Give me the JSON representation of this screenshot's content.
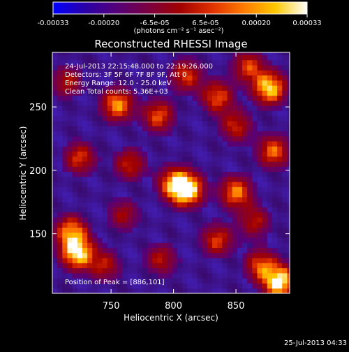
{
  "colorbar": {
    "ticks": [
      "-0.00033",
      "-0.00020",
      "-6.5e-05",
      "6.5e-05",
      "0.00020",
      "0.00033"
    ],
    "unit_label": "(photons cm⁻² s⁻¹ asec⁻²)",
    "stops": [
      "#0000ff",
      "#2a00a8",
      "#55007a",
      "#7a0040",
      "#a00000",
      "#e03000",
      "#ff7a00",
      "#ffc800",
      "#ffffff"
    ]
  },
  "chart_data": {
    "type": "heatmap",
    "title": "Reconstructed RHESSI Image",
    "xlabel": "Heliocentric X (arcsec)",
    "ylabel": "Heliocentric Y (arcsec)",
    "xlim": [
      703,
      893
    ],
    "ylim": [
      103,
      293
    ],
    "xticks": [
      750,
      800,
      850
    ],
    "yticks": [
      150,
      200,
      250
    ],
    "info_lines": [
      "24-Jul-2013 22:15:48.000 to 22:19:26.000",
      "Detectors: 3F 5F 6F 7F 8F 9F, Att 0",
      "Energy Range: 12.0 - 25.0 keV",
      "Clean     Total counts: 5.36E+03"
    ],
    "peak_text": "Position of Peak = [886,101]",
    "peak_position": [
      886,
      101
    ],
    "blobs": [
      {
        "x": 811,
        "y": 185,
        "v": 1.0
      },
      {
        "x": 800,
        "y": 190,
        "v": 0.65
      },
      {
        "x": 755,
        "y": 252,
        "v": 0.75
      },
      {
        "x": 723,
        "y": 135,
        "v": 0.95
      },
      {
        "x": 718,
        "y": 152,
        "v": 0.7
      },
      {
        "x": 877,
        "y": 265,
        "v": 0.9
      },
      {
        "x": 860,
        "y": 282,
        "v": 0.55
      },
      {
        "x": 885,
        "y": 112,
        "v": 1.0
      },
      {
        "x": 870,
        "y": 125,
        "v": 0.6
      },
      {
        "x": 850,
        "y": 183,
        "v": 0.7
      },
      {
        "x": 835,
        "y": 258,
        "v": 0.6
      },
      {
        "x": 880,
        "y": 215,
        "v": 0.65
      },
      {
        "x": 725,
        "y": 210,
        "v": 0.55
      },
      {
        "x": 835,
        "y": 145,
        "v": 0.55
      },
      {
        "x": 765,
        "y": 205,
        "v": 0.5
      },
      {
        "x": 788,
        "y": 243,
        "v": 0.6
      },
      {
        "x": 745,
        "y": 125,
        "v": 0.45
      },
      {
        "x": 850,
        "y": 235,
        "v": 0.5
      },
      {
        "x": 810,
        "y": 275,
        "v": 0.55
      },
      {
        "x": 790,
        "y": 130,
        "v": 0.45
      },
      {
        "x": 760,
        "y": 165,
        "v": 0.4
      },
      {
        "x": 715,
        "y": 270,
        "v": 0.45
      },
      {
        "x": 865,
        "y": 160,
        "v": 0.45
      }
    ]
  },
  "footer": {
    "timestamp": "25-Jul-2013 04:33"
  }
}
